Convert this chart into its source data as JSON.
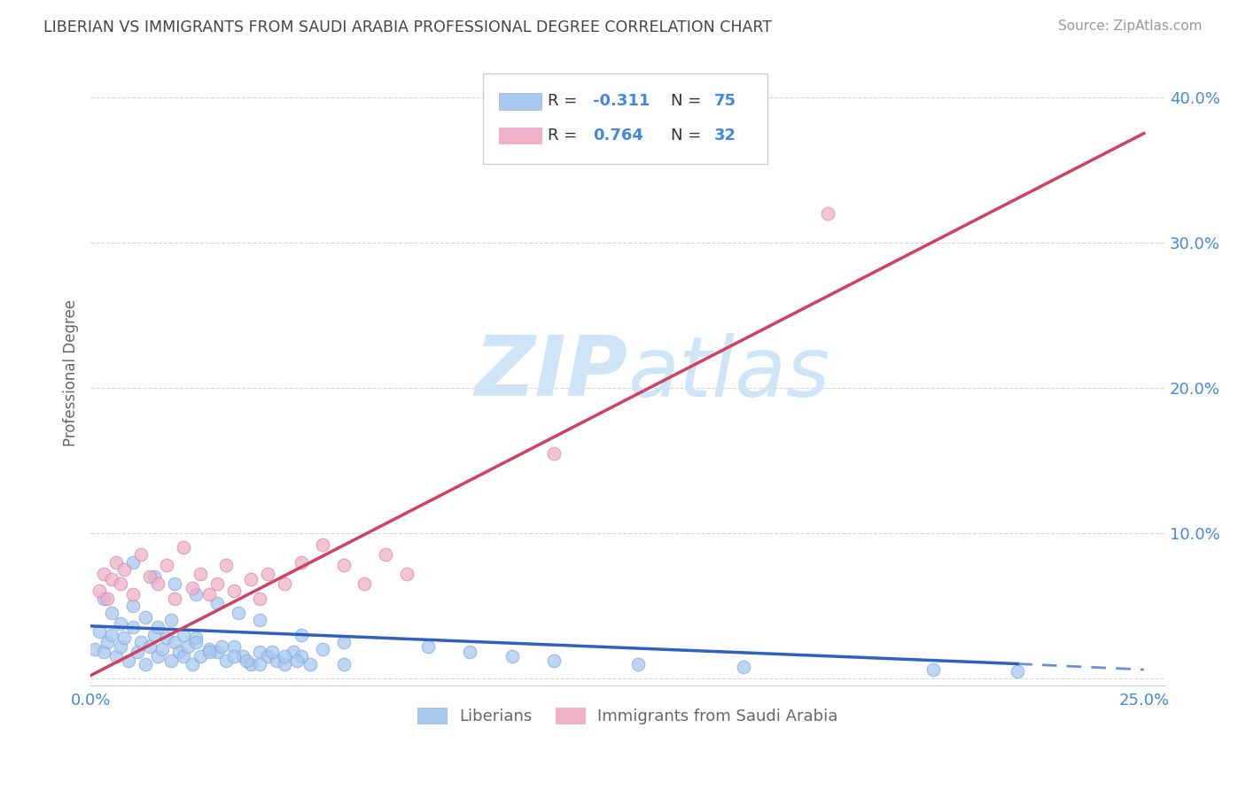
{
  "title": "LIBERIAN VS IMMIGRANTS FROM SAUDI ARABIA PROFESSIONAL DEGREE CORRELATION CHART",
  "source": "Source: ZipAtlas.com",
  "ylabel": "Professional Degree",
  "xlim": [
    0.0,
    0.255
  ],
  "ylim": [
    -0.005,
    0.425
  ],
  "xtick_positions": [
    0.0,
    0.05,
    0.1,
    0.15,
    0.2,
    0.25
  ],
  "xtick_labels": [
    "0.0%",
    "",
    "",
    "",
    "",
    "25.0%"
  ],
  "ytick_positions": [
    0.0,
    0.1,
    0.2,
    0.3,
    0.4
  ],
  "ytick_labels_right": [
    "",
    "10.0%",
    "20.0%",
    "30.0%",
    "40.0%"
  ],
  "blue_color": "#a8c8f0",
  "pink_color": "#f0b0c8",
  "blue_line_color": "#3060c0",
  "pink_line_color": "#d04060",
  "legend_blue_R": "-0.311",
  "legend_blue_N": "75",
  "legend_pink_R": "0.764",
  "legend_pink_N": "32",
  "blue_scatter_x": [
    0.001,
    0.002,
    0.003,
    0.004,
    0.005,
    0.006,
    0.007,
    0.008,
    0.009,
    0.01,
    0.011,
    0.012,
    0.013,
    0.014,
    0.015,
    0.016,
    0.017,
    0.018,
    0.019,
    0.02,
    0.021,
    0.022,
    0.023,
    0.024,
    0.025,
    0.026,
    0.028,
    0.03,
    0.032,
    0.034,
    0.036,
    0.038,
    0.04,
    0.042,
    0.044,
    0.046,
    0.048,
    0.05,
    0.055,
    0.06,
    0.003,
    0.005,
    0.007,
    0.01,
    0.013,
    0.016,
    0.019,
    0.022,
    0.025,
    0.028,
    0.031,
    0.034,
    0.037,
    0.04,
    0.043,
    0.046,
    0.049,
    0.052,
    0.01,
    0.015,
    0.02,
    0.025,
    0.03,
    0.035,
    0.04,
    0.05,
    0.06,
    0.08,
    0.09,
    0.1,
    0.11,
    0.13,
    0.155,
    0.2,
    0.22
  ],
  "blue_scatter_y": [
    0.02,
    0.032,
    0.018,
    0.025,
    0.03,
    0.015,
    0.022,
    0.028,
    0.012,
    0.035,
    0.018,
    0.025,
    0.01,
    0.022,
    0.03,
    0.015,
    0.02,
    0.028,
    0.012,
    0.025,
    0.018,
    0.015,
    0.022,
    0.01,
    0.028,
    0.015,
    0.02,
    0.018,
    0.012,
    0.022,
    0.015,
    0.01,
    0.018,
    0.015,
    0.012,
    0.01,
    0.018,
    0.015,
    0.02,
    0.01,
    0.055,
    0.045,
    0.038,
    0.05,
    0.042,
    0.035,
    0.04,
    0.03,
    0.025,
    0.018,
    0.022,
    0.015,
    0.012,
    0.01,
    0.018,
    0.015,
    0.012,
    0.01,
    0.08,
    0.07,
    0.065,
    0.058,
    0.052,
    0.045,
    0.04,
    0.03,
    0.025,
    0.022,
    0.018,
    0.015,
    0.012,
    0.01,
    0.008,
    0.006,
    0.005
  ],
  "pink_scatter_x": [
    0.002,
    0.003,
    0.004,
    0.005,
    0.006,
    0.007,
    0.008,
    0.01,
    0.012,
    0.014,
    0.016,
    0.018,
    0.02,
    0.022,
    0.024,
    0.026,
    0.028,
    0.03,
    0.032,
    0.034,
    0.038,
    0.04,
    0.042,
    0.046,
    0.05,
    0.055,
    0.06,
    0.065,
    0.07,
    0.075,
    0.11,
    0.175
  ],
  "pink_scatter_y": [
    0.06,
    0.072,
    0.055,
    0.068,
    0.08,
    0.065,
    0.075,
    0.058,
    0.085,
    0.07,
    0.065,
    0.078,
    0.055,
    0.09,
    0.062,
    0.072,
    0.058,
    0.065,
    0.078,
    0.06,
    0.068,
    0.055,
    0.072,
    0.065,
    0.08,
    0.092,
    0.078,
    0.065,
    0.085,
    0.072,
    0.155,
    0.32
  ],
  "blue_trend": [
    0.0,
    0.22,
    0.036,
    0.01
  ],
  "blue_trend_dash": [
    0.22,
    0.25,
    0.01,
    0.006
  ],
  "pink_trend": [
    0.0,
    0.25,
    0.002,
    0.375
  ],
  "background_color": "#ffffff",
  "grid_color": "#cccccc",
  "title_color": "#444444",
  "axis_label_color": "#4488dd",
  "label_color": "#666666"
}
